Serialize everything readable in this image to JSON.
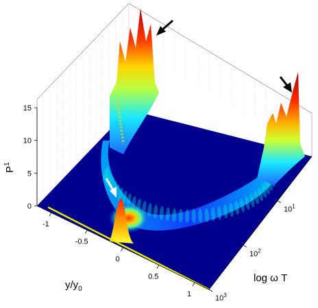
{
  "chart_data": {
    "type": "surface3d",
    "zlabel_base": "P",
    "zlabel_sup": "1",
    "xlabel_base": "y/y",
    "xlabel_sub": "0",
    "ylabel": "log ω T",
    "z_ticks": [
      "0",
      "5",
      "10",
      "15"
    ],
    "z_range": [
      0,
      15
    ],
    "x_ticks": [
      "-1",
      "-0.5",
      "0",
      "0.5",
      "1"
    ],
    "x_range": [
      -1.2,
      1.2
    ],
    "y_ticks": [
      {
        "base": "10",
        "exp": "1"
      },
      {
        "base": "10",
        "exp": "2"
      },
      {
        "base": "10",
        "exp": "3"
      }
    ],
    "y_range_log10": [
      0,
      3
    ],
    "grid": true,
    "colormap": "jet",
    "annotations": [
      {
        "type": "arrow",
        "color": "#000000",
        "target": "back-left ridge peak"
      },
      {
        "type": "arrow",
        "color": "#000000",
        "target": "back-right ridge peak"
      },
      {
        "type": "arrow",
        "color": "#ffffff",
        "target": "front central peak"
      }
    ]
  }
}
